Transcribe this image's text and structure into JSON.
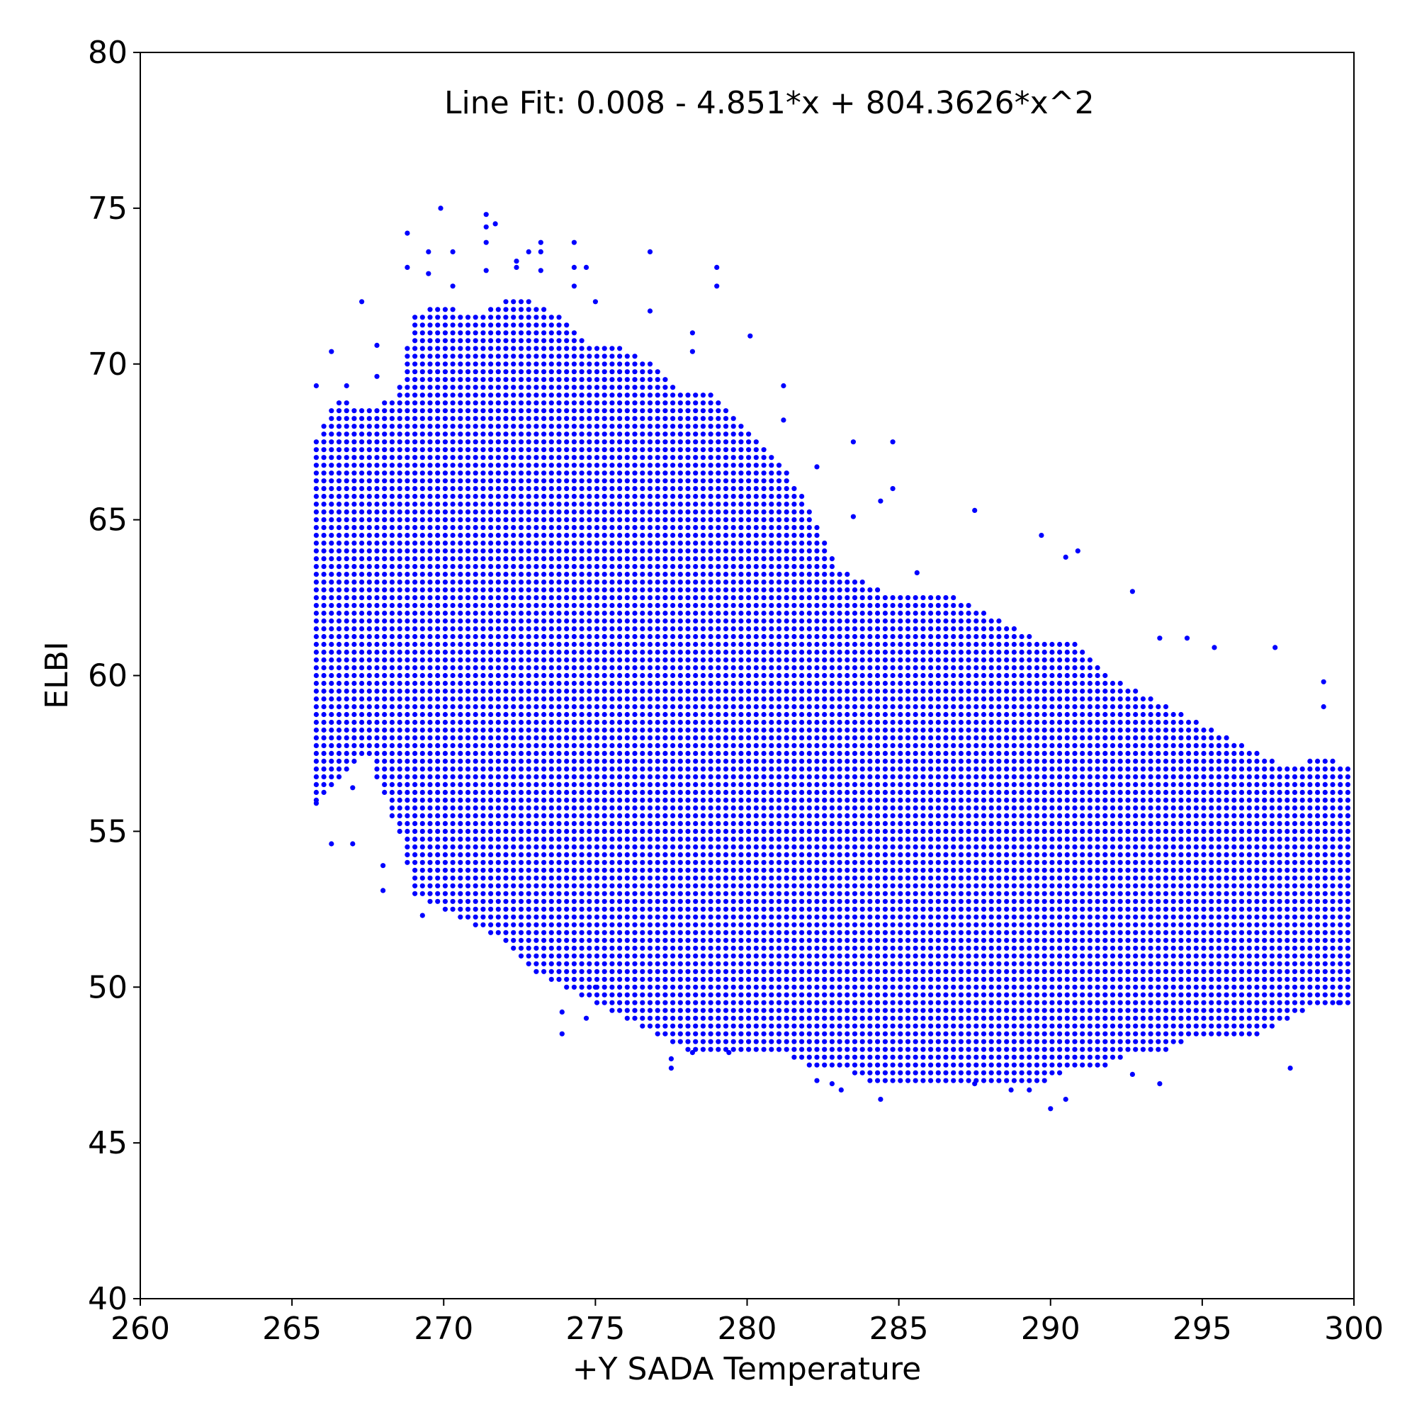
{
  "chart_data": {
    "type": "scatter",
    "title": "",
    "xlabel": "+Y SADA Temperature",
    "ylabel": "ELBI",
    "xlim": [
      260,
      300
    ],
    "ylim": [
      40,
      80
    ],
    "xticks": [
      "260",
      "265",
      "270",
      "275",
      "280",
      "285",
      "290",
      "295",
      "300"
    ],
    "yticks": [
      "40",
      "45",
      "50",
      "55",
      "60",
      "65",
      "70",
      "75",
      "80"
    ],
    "annotation": "Line Fit: 0.008  - 4.851*x + 804.3626*x^2",
    "grid": false,
    "legend": "none",
    "marker_color": "#0000ff",
    "series": [
      {
        "x_step": 0.25,
        "y_step": 0.25,
        "envelope": [
          {
            "x": 265.8,
            "ymin": 56.0,
            "ymax": 67.5
          },
          {
            "x": 266.5,
            "ymin": 56.5,
            "ymax": 69.0
          },
          {
            "x": 267.5,
            "ymin": 57.5,
            "ymax": 68.5
          },
          {
            "x": 268.5,
            "ymin": 55.0,
            "ymax": 69.0
          },
          {
            "x": 269.0,
            "ymin": 53.0,
            "ymax": 71.5
          },
          {
            "x": 270.0,
            "ymin": 52.5,
            "ymax": 72.0
          },
          {
            "x": 271.0,
            "ymin": 52.0,
            "ymax": 71.5
          },
          {
            "x": 272.0,
            "ymin": 51.5,
            "ymax": 72.0
          },
          {
            "x": 273.0,
            "ymin": 50.5,
            "ymax": 72.0
          },
          {
            "x": 274.0,
            "ymin": 50.0,
            "ymax": 71.5
          },
          {
            "x": 275.0,
            "ymin": 49.5,
            "ymax": 70.5
          },
          {
            "x": 276.0,
            "ymin": 49.0,
            "ymax": 70.5
          },
          {
            "x": 277.0,
            "ymin": 48.5,
            "ymax": 70.0
          },
          {
            "x": 278.0,
            "ymin": 48.0,
            "ymax": 69.0
          },
          {
            "x": 279.0,
            "ymin": 48.0,
            "ymax": 69.0
          },
          {
            "x": 280.0,
            "ymin": 48.0,
            "ymax": 68.0
          },
          {
            "x": 281.0,
            "ymin": 48.0,
            "ymax": 67.0
          },
          {
            "x": 282.0,
            "ymin": 47.5,
            "ymax": 65.5
          },
          {
            "x": 283.0,
            "ymin": 47.5,
            "ymax": 63.5
          },
          {
            "x": 284.0,
            "ymin": 47.0,
            "ymax": 63.0
          },
          {
            "x": 285.0,
            "ymin": 47.0,
            "ymax": 62.5
          },
          {
            "x": 286.0,
            "ymin": 47.0,
            "ymax": 62.5
          },
          {
            "x": 287.0,
            "ymin": 47.0,
            "ymax": 62.5
          },
          {
            "x": 288.0,
            "ymin": 47.0,
            "ymax": 62.0
          },
          {
            "x": 289.0,
            "ymin": 47.0,
            "ymax": 61.5
          },
          {
            "x": 290.0,
            "ymin": 47.0,
            "ymax": 61.0
          },
          {
            "x": 291.0,
            "ymin": 47.5,
            "ymax": 61.0
          },
          {
            "x": 292.0,
            "ymin": 47.5,
            "ymax": 60.0
          },
          {
            "x": 293.0,
            "ymin": 48.0,
            "ymax": 59.5
          },
          {
            "x": 294.0,
            "ymin": 48.0,
            "ymax": 59.0
          },
          {
            "x": 295.0,
            "ymin": 48.5,
            "ymax": 58.5
          },
          {
            "x": 296.0,
            "ymin": 48.5,
            "ymax": 58.0
          },
          {
            "x": 297.0,
            "ymin": 48.5,
            "ymax": 57.5
          },
          {
            "x": 298.0,
            "ymin": 49.0,
            "ymax": 57.0
          },
          {
            "x": 299.0,
            "ymin": 49.5,
            "ymax": 57.5
          },
          {
            "x": 300.0,
            "ymin": 49.5,
            "ymax": 57.0
          }
        ],
        "outliers": [
          [
            265.8,
            69.3
          ],
          [
            265.8,
            55.9
          ],
          [
            266.3,
            70.4
          ],
          [
            266.3,
            54.6
          ],
          [
            266.8,
            69.3
          ],
          [
            267.0,
            54.6
          ],
          [
            267.0,
            56.4
          ],
          [
            267.3,
            72.0
          ],
          [
            267.8,
            70.6
          ],
          [
            267.8,
            69.6
          ],
          [
            268.0,
            53.9
          ],
          [
            268.0,
            53.1
          ],
          [
            268.8,
            74.2
          ],
          [
            268.8,
            73.1
          ],
          [
            269.3,
            52.3
          ],
          [
            269.5,
            72.9
          ],
          [
            269.5,
            73.6
          ],
          [
            269.9,
            75.0
          ],
          [
            270.3,
            73.6
          ],
          [
            270.3,
            72.5
          ],
          [
            271.4,
            74.8
          ],
          [
            271.4,
            74.4
          ],
          [
            271.4,
            73.9
          ],
          [
            271.4,
            73.0
          ],
          [
            271.7,
            74.5
          ],
          [
            272.4,
            73.3
          ],
          [
            272.4,
            73.1
          ],
          [
            272.8,
            73.6
          ],
          [
            273.2,
            73.9
          ],
          [
            273.2,
            73.6
          ],
          [
            273.2,
            73.0
          ],
          [
            273.9,
            48.5
          ],
          [
            273.9,
            49.2
          ],
          [
            274.3,
            73.9
          ],
          [
            274.3,
            73.1
          ],
          [
            274.3,
            72.5
          ],
          [
            274.7,
            73.1
          ],
          [
            274.7,
            49.0
          ],
          [
            275.0,
            72.0
          ],
          [
            275.0,
            50.0
          ],
          [
            276.8,
            73.6
          ],
          [
            276.8,
            71.7
          ],
          [
            277.5,
            47.4
          ],
          [
            277.5,
            47.7
          ],
          [
            278.2,
            71.0
          ],
          [
            278.2,
            70.4
          ],
          [
            278.2,
            47.9
          ],
          [
            279.0,
            73.1
          ],
          [
            279.0,
            72.5
          ],
          [
            279.4,
            47.9
          ],
          [
            280.1,
            70.9
          ],
          [
            281.2,
            69.3
          ],
          [
            281.2,
            68.2
          ],
          [
            282.3,
            66.7
          ],
          [
            282.3,
            47.0
          ],
          [
            282.8,
            46.9
          ],
          [
            283.1,
            46.7
          ],
          [
            283.5,
            67.5
          ],
          [
            283.5,
            65.1
          ],
          [
            284.4,
            65.6
          ],
          [
            284.4,
            46.4
          ],
          [
            284.8,
            67.5
          ],
          [
            284.8,
            66.0
          ],
          [
            285.6,
            63.3
          ],
          [
            287.5,
            65.3
          ],
          [
            287.5,
            46.9
          ],
          [
            288.7,
            46.7
          ],
          [
            289.3,
            46.7
          ],
          [
            289.7,
            64.5
          ],
          [
            290.0,
            46.1
          ],
          [
            290.5,
            46.4
          ],
          [
            290.5,
            63.8
          ],
          [
            290.9,
            64.0
          ],
          [
            292.7,
            62.7
          ],
          [
            292.7,
            47.2
          ],
          [
            293.6,
            61.2
          ],
          [
            293.6,
            46.9
          ],
          [
            294.5,
            61.2
          ],
          [
            295.4,
            60.9
          ],
          [
            297.4,
            60.9
          ],
          [
            297.9,
            47.4
          ],
          [
            299.0,
            59.8
          ],
          [
            299.0,
            59.0
          ],
          [
            299.5,
            49.5
          ]
        ]
      }
    ]
  }
}
